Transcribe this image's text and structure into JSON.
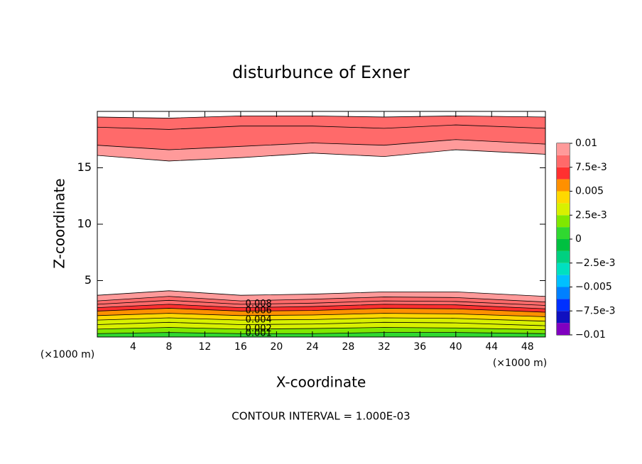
{
  "chart_data": {
    "type": "contour",
    "title": "disturbunce of Exner",
    "x_label": "X-coordinate",
    "y_label": "Z-coordinate",
    "x_unit": "(×1000 m)",
    "y_unit": "(×1000 m)",
    "footer": "CONTOUR INTERVAL = 1.000E-03",
    "xlim": [
      0,
      50
    ],
    "ylim": [
      0,
      20
    ],
    "xticks": [
      4,
      8,
      12,
      16,
      20,
      24,
      28,
      32,
      36,
      40,
      44,
      48
    ],
    "yticks": [
      5,
      10,
      15
    ],
    "x": [
      0,
      8,
      16,
      24,
      32,
      40,
      50
    ],
    "lower_contours": [
      {
        "level": 0.001,
        "z": [
          0.3,
          0.4,
          0.3,
          0.3,
          0.4,
          0.4,
          0.3
        ]
      },
      {
        "level": 0.002,
        "z": [
          0.7,
          0.85,
          0.7,
          0.75,
          0.85,
          0.8,
          0.65
        ]
      },
      {
        "level": 0.003,
        "z": [
          1.1,
          1.3,
          1.1,
          1.15,
          1.3,
          1.25,
          1.0
        ]
      },
      {
        "level": 0.004,
        "z": [
          1.5,
          1.7,
          1.5,
          1.55,
          1.7,
          1.65,
          1.4
        ]
      },
      {
        "level": 0.005,
        "z": [
          1.9,
          2.1,
          1.9,
          1.95,
          2.1,
          2.05,
          1.8
        ]
      },
      {
        "level": 0.006,
        "z": [
          2.3,
          2.55,
          2.3,
          2.35,
          2.55,
          2.5,
          2.2
        ]
      },
      {
        "level": 0.007,
        "z": [
          2.6,
          2.9,
          2.6,
          2.7,
          2.9,
          2.85,
          2.5
        ]
      },
      {
        "level": 0.008,
        "z": [
          2.9,
          3.25,
          2.9,
          3.0,
          3.2,
          3.15,
          2.8
        ]
      },
      {
        "level": 0.009,
        "z": [
          3.2,
          3.6,
          3.2,
          3.35,
          3.55,
          3.5,
          3.1
        ]
      },
      {
        "level": 0.01,
        "z": [
          3.7,
          4.1,
          3.7,
          3.8,
          4.0,
          4.0,
          3.6
        ]
      }
    ],
    "upper_contours": [
      {
        "level": 0.01,
        "z": [
          16.1,
          15.6,
          15.9,
          16.3,
          16.0,
          16.6,
          16.2
        ]
      },
      {
        "level": 0.009,
        "z": [
          17.0,
          16.6,
          16.9,
          17.2,
          17.0,
          17.5,
          17.1
        ]
      },
      {
        "level": 0.008,
        "z": [
          18.6,
          18.4,
          18.7,
          18.7,
          18.5,
          18.8,
          18.5
        ]
      },
      {
        "level": 0.007,
        "z": [
          19.5,
          19.4,
          19.6,
          19.6,
          19.5,
          19.6,
          19.5
        ]
      }
    ],
    "labeled_levels": [
      0.008,
      0.006,
      0.004,
      0.002,
      0.001
    ],
    "label_x": 18,
    "colorbar": {
      "levels": [
        -0.01,
        -0.00875,
        -0.0075,
        -0.00625,
        -0.005,
        -0.00375,
        -0.0025,
        -0.00125,
        0,
        0.00125,
        0.0025,
        0.00375,
        0.005,
        0.00625,
        0.0075,
        0.00875,
        0.01
      ],
      "colors": [
        "#8000c0",
        "#1010c0",
        "#0030ff",
        "#0080ff",
        "#00c0ff",
        "#00e0c0",
        "#00d080",
        "#00c040",
        "#30d830",
        "#80e800",
        "#d8f000",
        "#ffd800",
        "#ff9000",
        "#ff3030",
        "#ff6a6a",
        "#ff9a9a"
      ],
      "ticks": [
        {
          "value": -0.01,
          "label": "−0.01"
        },
        {
          "value": -0.0075,
          "label": "−7.5e-3"
        },
        {
          "value": -0.005,
          "label": "−0.005"
        },
        {
          "value": -0.0025,
          "label": "−2.5e-3"
        },
        0,
        {
          "value": 0.0025,
          "label": "2.5e-3"
        },
        0.005,
        {
          "value": 0.0075,
          "label": "7.5e-3"
        },
        0.01
      ]
    }
  }
}
